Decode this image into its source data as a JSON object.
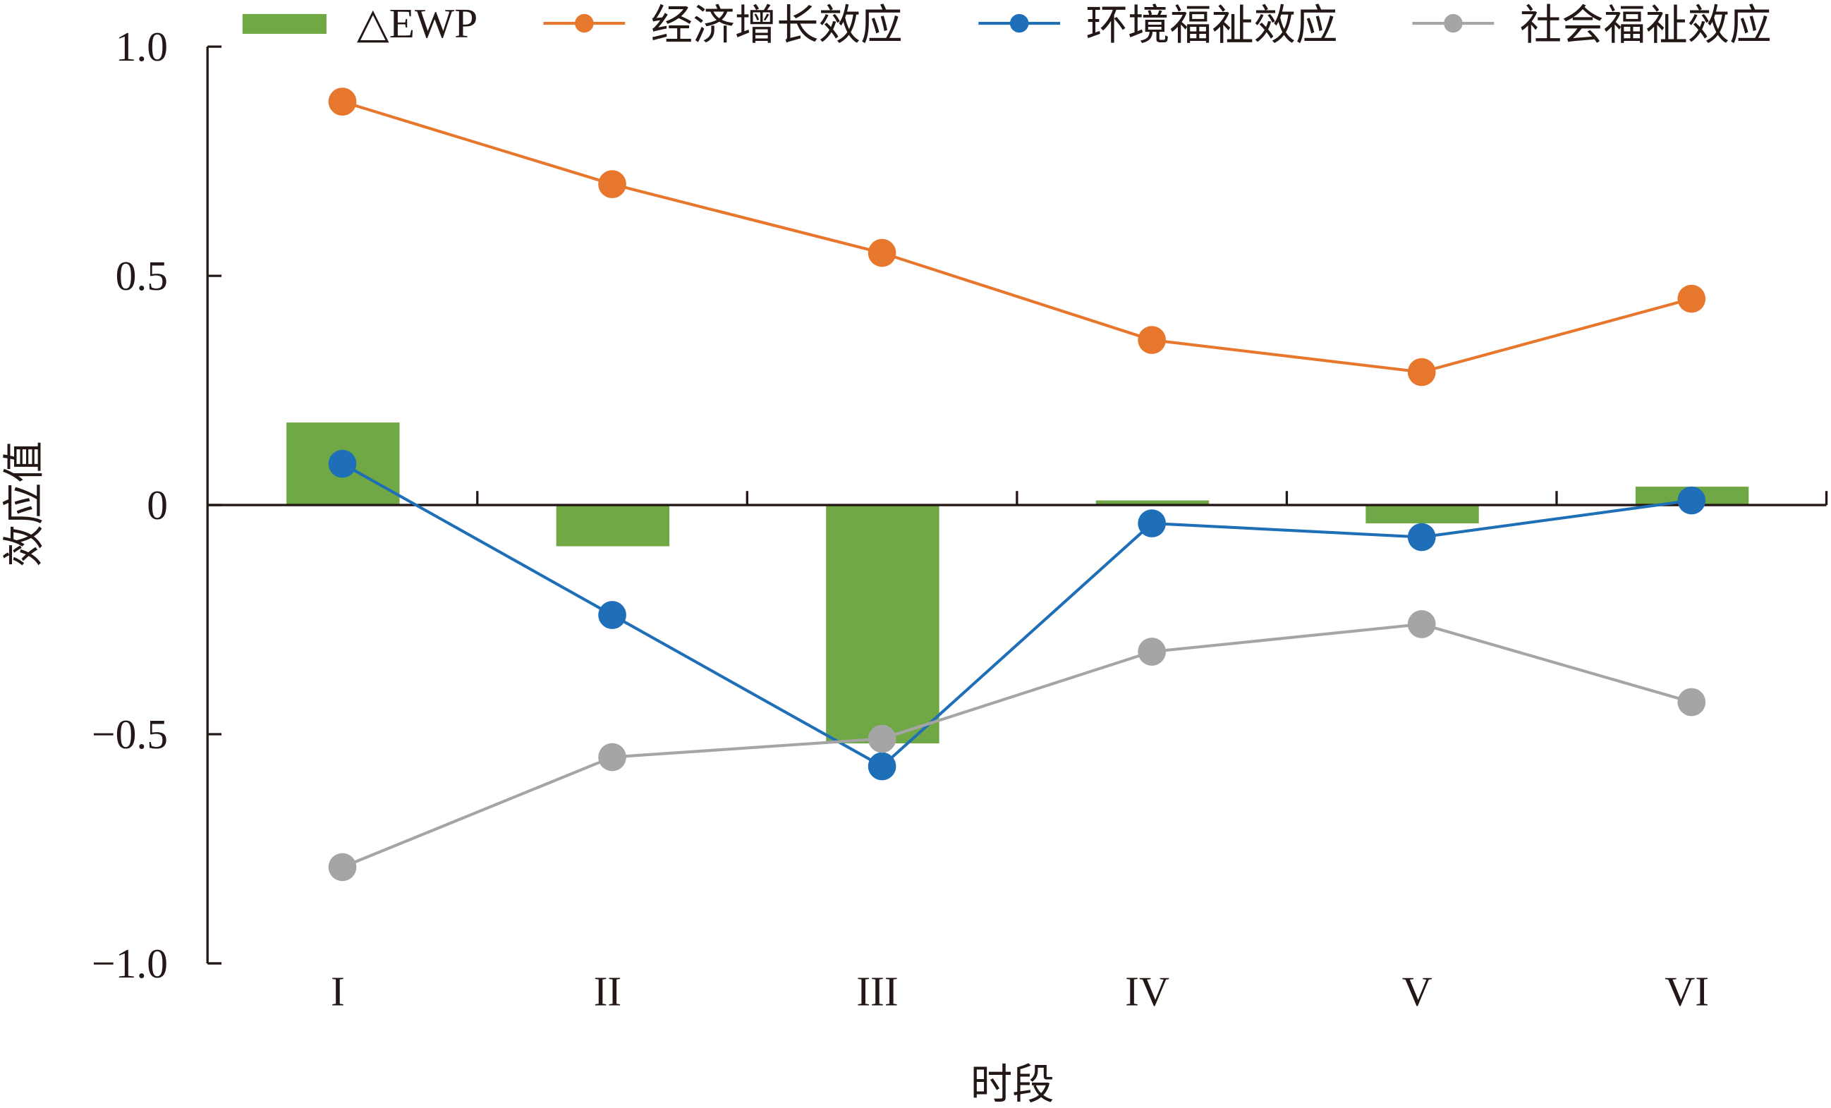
{
  "chart_data": {
    "type": "bar+line",
    "title": "",
    "xlabel": "时段",
    "ylabel": "效应值",
    "ylim": [
      -1.0,
      1.0
    ],
    "yticks": [
      1.0,
      0.5,
      0,
      -0.5,
      -1.0
    ],
    "ytick_labels": [
      "1.0",
      "0.5",
      "0",
      "−0.5",
      "−1.0"
    ],
    "categories": [
      "I",
      "II",
      "III",
      "IV",
      "V",
      "VI"
    ],
    "grid": false,
    "legend_position": "top",
    "bars": {
      "name": "△EWP",
      "color": "#70a845",
      "values": [
        0.18,
        -0.09,
        -0.52,
        0.01,
        -0.04,
        0.04
      ]
    },
    "series": [
      {
        "name": "经济增长效应",
        "color": "#e8772e",
        "values": [
          0.88,
          0.7,
          0.55,
          0.36,
          0.29,
          0.45
        ]
      },
      {
        "name": "环境福祉效应",
        "color": "#1f6fb8",
        "values": [
          0.09,
          -0.24,
          -0.57,
          -0.04,
          -0.07,
          0.01
        ]
      },
      {
        "name": "社会福祉效应",
        "color": "#a5a5a5",
        "values": [
          -0.79,
          -0.55,
          -0.51,
          -0.32,
          -0.26,
          -0.43
        ]
      }
    ]
  }
}
